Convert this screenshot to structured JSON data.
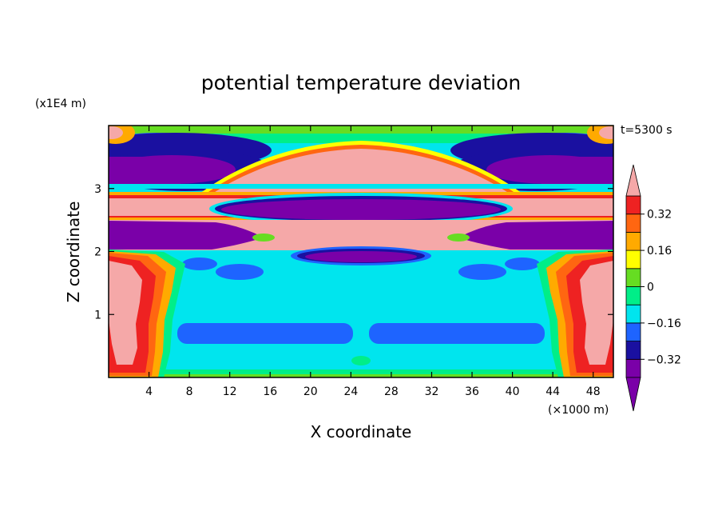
{
  "chart_data": {
    "type": "heatmap",
    "title": "potential temperature deviation",
    "xlabel": "X coordinate",
    "ylabel": "Z coordinate",
    "x_unit": "(×1000 m)",
    "y_unit": "(x1E4 m)",
    "time_label": "t=5300 s",
    "xlim": [
      0,
      50
    ],
    "ylim": [
      0,
      4
    ],
    "x_ticks": [
      "4",
      "8",
      "12",
      "16",
      "20",
      "24",
      "28",
      "32",
      "36",
      "40",
      "44",
      "48"
    ],
    "x_tick_values": [
      4,
      8,
      12,
      16,
      20,
      24,
      28,
      32,
      36,
      40,
      44,
      48
    ],
    "y_ticks": [
      "1",
      "2",
      "3"
    ],
    "y_tick_values": [
      1,
      2,
      3
    ],
    "colorbar": {
      "levels": [
        -0.4,
        -0.32,
        -0.24,
        -0.16,
        -0.08,
        0,
        0.08,
        0.16,
        0.24,
        0.32,
        0.4
      ],
      "labels": [
        "0.32",
        "0.16",
        "0",
        "−0.16",
        "−0.32"
      ],
      "label_values": [
        0.32,
        0.16,
        0,
        -0.16,
        -0.32
      ],
      "colors": [
        "#7a00a8",
        "#1a10a0",
        "#1e64ff",
        "#00e5ee",
        "#00ee88",
        "#66dd22",
        "#ffff00",
        "#ffaa00",
        "#ff6611",
        "#ee2222",
        "#f5a8a8"
      ]
    },
    "grid": false
  }
}
